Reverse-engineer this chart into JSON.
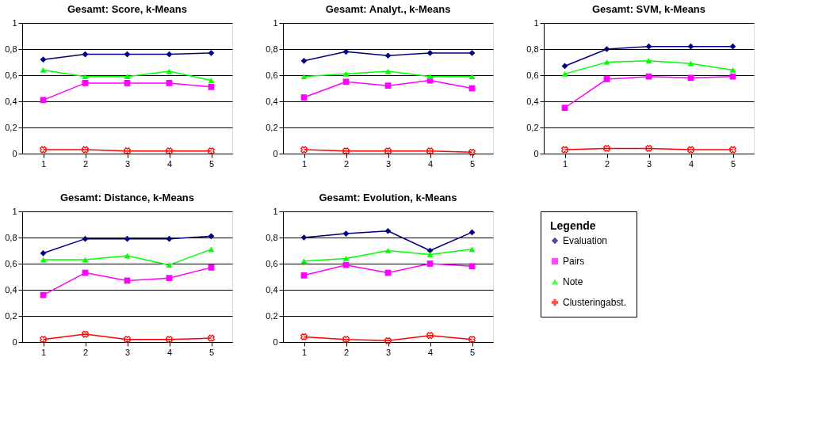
{
  "chart_data": [
    {
      "type": "line",
      "title": "Gesamt: Score, k-Means",
      "categories": [
        "1",
        "2",
        "3",
        "4",
        "5"
      ],
      "ylim": [
        0,
        1
      ],
      "yticks": [
        0,
        {
          "value": 0.2,
          "label": "0,2"
        },
        {
          "value": 0.4,
          "label": "0,4"
        },
        {
          "value": 0.6,
          "label": "0,6"
        },
        {
          "value": 0.8,
          "label": "0,8"
        },
        1
      ],
      "grid": "y",
      "line_style": "solid",
      "legend": "right",
      "legend_title": "Legende",
      "series": [
        {
          "name": "Evaluation",
          "color": "#000080",
          "marker": "diamond",
          "values": [
            0.72,
            0.76,
            0.76,
            0.76,
            0.77
          ]
        },
        {
          "name": "Pairs",
          "color": "#ff00ff",
          "marker": "square",
          "values": [
            0.41,
            0.54,
            0.54,
            0.54,
            0.51
          ]
        },
        {
          "name": "Note",
          "color": "#00ff00",
          "marker": "triangle",
          "values": [
            0.64,
            0.59,
            0.59,
            0.63,
            0.56
          ]
        },
        {
          "name": "Clusteringabst.",
          "color": "#ff0000",
          "marker": "cross",
          "values": [
            0.03,
            0.03,
            0.02,
            0.02,
            0.02
          ]
        }
      ]
    },
    {
      "type": "line",
      "title": "Gesamt: Analyt., k-Means",
      "categories": [
        "1",
        "2",
        "3",
        "4",
        "5"
      ],
      "ylim": [
        0,
        1
      ],
      "yticks": [
        0,
        {
          "value": 0.2,
          "label": "0,2"
        },
        {
          "value": 0.4,
          "label": "0,4"
        },
        {
          "value": 0.6,
          "label": "0,6"
        },
        {
          "value": 0.8,
          "label": "0,8"
        },
        1
      ],
      "grid": "y",
      "line_style": "solid",
      "series": [
        {
          "color": "#000080",
          "marker": "diamond",
          "values": [
            0.71,
            0.78,
            0.75,
            0.77,
            0.77
          ]
        },
        {
          "color": "#ff00ff",
          "marker": "square",
          "values": [
            0.43,
            0.55,
            0.52,
            0.56,
            0.5
          ]
        },
        {
          "color": "#00ff00",
          "marker": "triangle",
          "values": [
            0.59,
            0.61,
            0.63,
            0.59,
            0.59
          ]
        },
        {
          "color": "#ff0000",
          "marker": "cross",
          "values": [
            0.03,
            0.02,
            0.02,
            0.02,
            0.01
          ]
        }
      ]
    },
    {
      "type": "line",
      "title": "Gesamt: SVM, k-Means",
      "categories": [
        "1",
        "2",
        "3",
        "4",
        "5"
      ],
      "ylim": [
        0,
        1
      ],
      "yticks": [
        0,
        {
          "value": 0.2,
          "label": "0,2"
        },
        {
          "value": 0.4,
          "label": "0,4"
        },
        {
          "value": 0.6,
          "label": "0,6"
        },
        {
          "value": 0.8,
          "label": "0,8"
        },
        1
      ],
      "grid": "y",
      "line_style": "solid",
      "series": [
        {
          "color": "#000080",
          "marker": "diamond",
          "values": [
            0.67,
            0.8,
            0.82,
            0.82,
            0.82
          ]
        },
        {
          "color": "#ff00ff",
          "marker": "square",
          "values": [
            0.35,
            0.57,
            0.59,
            0.58,
            0.59
          ]
        },
        {
          "color": "#00ff00",
          "marker": "triangle",
          "values": [
            0.61,
            0.7,
            0.71,
            0.69,
            0.64
          ]
        },
        {
          "color": "#ff0000",
          "marker": "cross",
          "values": [
            0.03,
            0.04,
            0.04,
            0.03,
            0.03
          ]
        }
      ]
    },
    {
      "type": "line",
      "title": "Gesamt: Distance, k-Means",
      "categories": [
        "1",
        "2",
        "3",
        "4",
        "5"
      ],
      "ylim": [
        0,
        1
      ],
      "yticks": [
        0,
        {
          "value": 0.2,
          "label": "0,2"
        },
        {
          "value": 0.4,
          "label": "0,4"
        },
        {
          "value": 0.6,
          "label": "0,6"
        },
        {
          "value": 0.8,
          "label": "0,8"
        },
        1
      ],
      "grid": "y",
      "line_style": "solid",
      "series": [
        {
          "color": "#000080",
          "marker": "diamond",
          "values": [
            0.68,
            0.79,
            0.79,
            0.79,
            0.81
          ]
        },
        {
          "color": "#ff00ff",
          "marker": "square",
          "values": [
            0.36,
            0.53,
            0.47,
            0.49,
            0.57
          ]
        },
        {
          "color": "#00ff00",
          "marker": "triangle",
          "values": [
            0.63,
            0.63,
            0.66,
            0.59,
            0.71
          ]
        },
        {
          "color": "#ff0000",
          "marker": "cross",
          "values": [
            0.02,
            0.06,
            0.02,
            0.02,
            0.03
          ]
        }
      ]
    },
    {
      "type": "line",
      "title": "Gesamt: Evolution, k-Means",
      "categories": [
        "1",
        "2",
        "3",
        "4",
        "5"
      ],
      "ylim": [
        0,
        1
      ],
      "yticks": [
        0,
        {
          "value": 0.2,
          "label": "0,2"
        },
        {
          "value": 0.4,
          "label": "0,4"
        },
        {
          "value": 0.6,
          "label": "0,6"
        },
        {
          "value": 0.8,
          "label": "0,8"
        },
        1
      ],
      "grid": "y",
      "line_style": "solid",
      "series": [
        {
          "color": "#000080",
          "marker": "diamond",
          "values": [
            0.8,
            0.83,
            0.85,
            0.7,
            0.84
          ]
        },
        {
          "color": "#ff00ff",
          "marker": "square",
          "values": [
            0.51,
            0.59,
            0.53,
            0.6,
            0.58
          ]
        },
        {
          "color": "#00ff00",
          "marker": "triangle",
          "values": [
            0.62,
            0.64,
            0.7,
            0.67,
            0.71
          ]
        },
        {
          "color": "#ff0000",
          "marker": "cross",
          "values": [
            0.04,
            0.02,
            0.01,
            0.05,
            0.02
          ]
        }
      ]
    }
  ]
}
